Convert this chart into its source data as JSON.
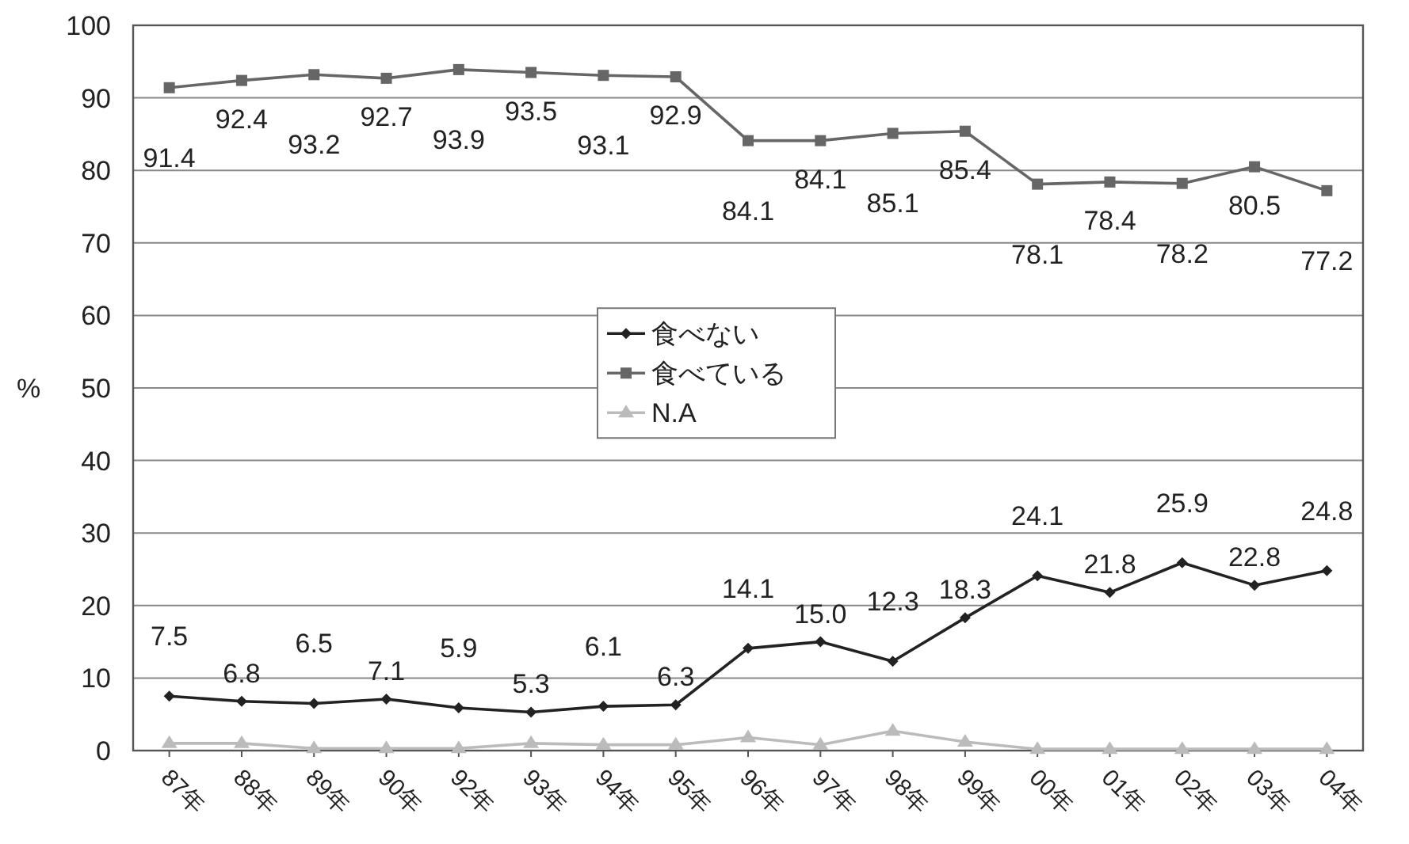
{
  "chart_data": {
    "type": "line",
    "ylabel": "%",
    "categories": [
      "87年",
      "88年",
      "89年",
      "90年",
      "92年",
      "93年",
      "94年",
      "95年",
      "96年",
      "97年",
      "98年",
      "99年",
      "00年",
      "01年",
      "02年",
      "03年",
      "04年"
    ],
    "series": [
      {
        "name": "食べない",
        "color": "#222222",
        "marker": "diamond",
        "values": [
          7.5,
          6.8,
          6.5,
          7.1,
          5.9,
          5.3,
          6.1,
          6.3,
          14.1,
          15.0,
          12.3,
          18.3,
          24.1,
          21.8,
          25.9,
          22.8,
          24.8
        ],
        "value_labels": [
          "7.5",
          "6.8",
          "6.5",
          "7.1",
          "5.9",
          "5.3",
          "6.1",
          "6.3",
          "14.1",
          "15.0",
          "12.3",
          "18.3",
          "24.1",
          "21.8",
          "25.9",
          "22.8",
          "24.8"
        ]
      },
      {
        "name": "食べている",
        "color": "#666666",
        "marker": "square",
        "values": [
          91.4,
          92.4,
          93.2,
          92.7,
          93.9,
          93.5,
          93.1,
          92.9,
          84.1,
          84.1,
          85.1,
          85.4,
          78.1,
          78.4,
          78.2,
          80.5,
          77.2
        ],
        "value_labels": [
          "91.4",
          "92.4",
          "93.2",
          "92.7",
          "93.9",
          "93.5",
          "93.1",
          "92.9",
          "84.1",
          "84.1",
          "85.1",
          "85.4",
          "78.1",
          "78.4",
          "78.2",
          "80.5",
          "77.2"
        ]
      },
      {
        "name": "N.A",
        "color": "#bbbbbb",
        "marker": "triangle",
        "values": [
          1.0,
          1.0,
          0.3,
          0.3,
          0.3,
          1.0,
          0.8,
          0.8,
          1.8,
          0.8,
          2.7,
          1.2,
          0.2,
          0.2,
          0.2,
          0.2,
          0.2
        ]
      }
    ],
    "ylim": [
      0,
      100
    ],
    "yticks": [
      0,
      10,
      20,
      30,
      40,
      50,
      60,
      70,
      80,
      90,
      100
    ],
    "grid": "y",
    "legend": "center"
  }
}
